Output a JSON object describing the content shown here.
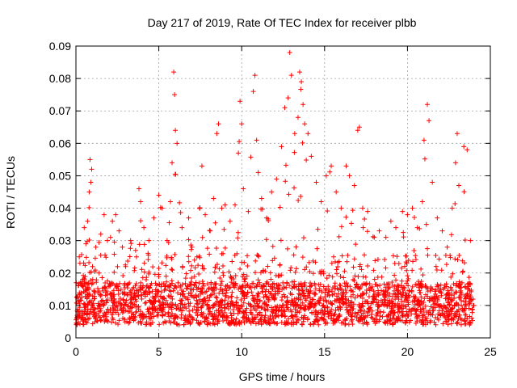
{
  "chart_data": {
    "type": "scatter",
    "title": "Day 217 of 2019, Rate Of TEC Index for receiver plbb",
    "xlabel": "GPS time / hours",
    "ylabel": "ROTI / TECUs",
    "xlim": [
      0,
      25
    ],
    "ylim": [
      0,
      0.09
    ],
    "xticks": [
      0,
      5,
      10,
      15,
      20,
      25
    ],
    "xtick_labels": [
      "0",
      "5",
      "10",
      "15",
      "20",
      "25"
    ],
    "yticks": [
      0,
      0.01,
      0.02,
      0.03,
      0.04,
      0.05,
      0.06,
      0.07,
      0.08,
      0.09
    ],
    "ytick_labels": [
      "0",
      "0.01",
      "0.02",
      "0.03",
      "0.04",
      "0.05",
      "0.06",
      "0.07",
      "0.08",
      "0.09"
    ],
    "grid": true,
    "marker": "+",
    "color": "#ff0000",
    "series": [
      {
        "points": [
          [
            0.05,
            0.006
          ],
          [
            0.2,
            0.025
          ],
          [
            0.4,
            0.018
          ],
          [
            0.5,
            0.034
          ],
          [
            0.6,
            0.029
          ],
          [
            0.7,
            0.036
          ],
          [
            0.8,
            0.045
          ],
          [
            0.85,
            0.055
          ],
          [
            0.9,
            0.048
          ],
          [
            0.95,
            0.052
          ],
          [
            1.0,
            0.022
          ],
          [
            1.2,
            0.028
          ],
          [
            1.5,
            0.032
          ],
          [
            1.7,
            0.038
          ],
          [
            1.9,
            0.03
          ],
          [
            2.2,
            0.036
          ],
          [
            2.4,
            0.038
          ],
          [
            2.6,
            0.033
          ],
          [
            2.8,
            0.028
          ],
          [
            3.0,
            0.022
          ],
          [
            3.3,
            0.03
          ],
          [
            3.6,
            0.027
          ],
          [
            3.8,
            0.046
          ],
          [
            3.9,
            0.042
          ],
          [
            4.1,
            0.034
          ],
          [
            4.4,
            0.03
          ],
          [
            4.7,
            0.037
          ],
          [
            5.0,
            0.044
          ],
          [
            5.2,
            0.04
          ],
          [
            5.5,
            0.03
          ],
          [
            5.7,
            0.042
          ],
          [
            5.8,
            0.054
          ],
          [
            5.9,
            0.082
          ],
          [
            5.95,
            0.075
          ],
          [
            6.0,
            0.064
          ],
          [
            6.1,
            0.06
          ],
          [
            6.4,
            0.034
          ],
          [
            6.8,
            0.037
          ],
          [
            7.0,
            0.028
          ],
          [
            7.3,
            0.025
          ],
          [
            7.6,
            0.053
          ],
          [
            7.8,
            0.038
          ],
          [
            8.1,
            0.033
          ],
          [
            8.3,
            0.043
          ],
          [
            8.5,
            0.063
          ],
          [
            8.6,
            0.066
          ],
          [
            8.8,
            0.04
          ],
          [
            9.0,
            0.041
          ],
          [
            9.3,
            0.036
          ],
          [
            9.6,
            0.041
          ],
          [
            9.8,
            0.057
          ],
          [
            9.9,
            0.073
          ],
          [
            10.0,
            0.066
          ],
          [
            10.1,
            0.046
          ],
          [
            10.4,
            0.039
          ],
          [
            10.7,
            0.076
          ],
          [
            10.8,
            0.081
          ],
          [
            10.9,
            0.061
          ],
          [
            11.0,
            0.051
          ],
          [
            11.2,
            0.043
          ],
          [
            11.5,
            0.037
          ],
          [
            11.8,
            0.045
          ],
          [
            12.1,
            0.049
          ],
          [
            12.4,
            0.059
          ],
          [
            12.6,
            0.071
          ],
          [
            12.8,
            0.074
          ],
          [
            12.9,
            0.088
          ],
          [
            13.0,
            0.081
          ],
          [
            13.2,
            0.063
          ],
          [
            13.4,
            0.068
          ],
          [
            13.5,
            0.082
          ],
          [
            13.6,
            0.079
          ],
          [
            13.7,
            0.072
          ],
          [
            13.8,
            0.066
          ],
          [
            14.0,
            0.063
          ],
          [
            14.2,
            0.056
          ],
          [
            14.5,
            0.048
          ],
          [
            14.8,
            0.042
          ],
          [
            15.1,
            0.05
          ],
          [
            15.4,
            0.053
          ],
          [
            15.7,
            0.045
          ],
          [
            16.0,
            0.04
          ],
          [
            16.3,
            0.053
          ],
          [
            16.5,
            0.05
          ],
          [
            16.8,
            0.047
          ],
          [
            17.0,
            0.064
          ],
          [
            17.1,
            0.065
          ],
          [
            17.3,
            0.04
          ],
          [
            17.6,
            0.039
          ],
          [
            18.0,
            0.031
          ],
          [
            18.3,
            0.033
          ],
          [
            18.7,
            0.031
          ],
          [
            19.0,
            0.036
          ],
          [
            19.3,
            0.034
          ],
          [
            19.7,
            0.039
          ],
          [
            20.0,
            0.038
          ],
          [
            20.3,
            0.04
          ],
          [
            20.6,
            0.034
          ],
          [
            20.9,
            0.042
          ],
          [
            21.0,
            0.061
          ],
          [
            21.2,
            0.072
          ],
          [
            21.3,
            0.067
          ],
          [
            21.5,
            0.048
          ],
          [
            21.8,
            0.037
          ],
          [
            22.1,
            0.033
          ],
          [
            22.4,
            0.028
          ],
          [
            22.7,
            0.04
          ],
          [
            22.9,
            0.054
          ],
          [
            23.0,
            0.063
          ],
          [
            23.1,
            0.047
          ],
          [
            23.4,
            0.059
          ],
          [
            23.6,
            0.058
          ],
          [
            23.8,
            0.03
          ],
          [
            24.0,
            0.01
          ]
        ]
      }
    ]
  }
}
